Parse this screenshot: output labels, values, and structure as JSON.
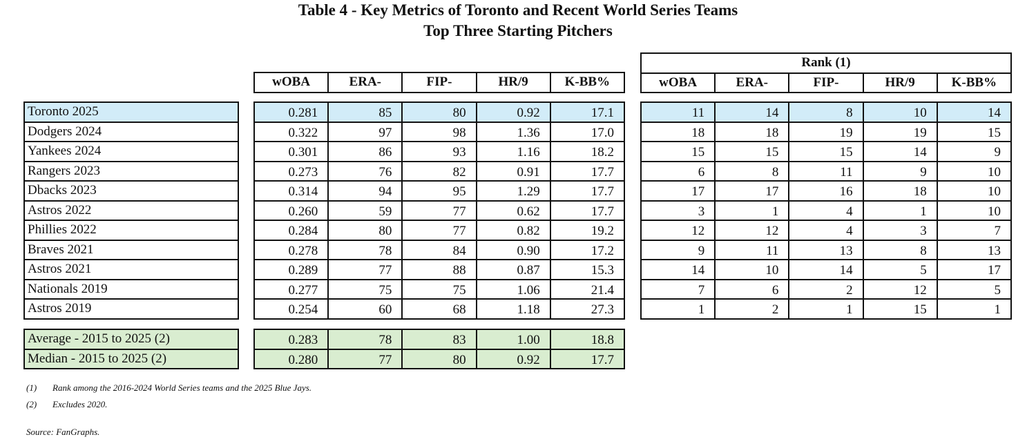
{
  "title": "Table 4 - Key Metrics of Toronto and Recent World Series Teams",
  "subtitle": "Top Three Starting Pitchers",
  "rank_header": "Rank (1)",
  "columns": [
    "wOBA",
    "ERA-",
    "FIP-",
    "HR/9",
    "K-BB%"
  ],
  "rows": [
    {
      "team": "Toronto 2025",
      "values": [
        "0.281",
        "85",
        "80",
        "0.92",
        "17.1"
      ],
      "ranks": [
        "11",
        "14",
        "8",
        "10",
        "14"
      ]
    },
    {
      "team": "Dodgers 2024",
      "values": [
        "0.322",
        "97",
        "98",
        "1.36",
        "17.0"
      ],
      "ranks": [
        "18",
        "18",
        "19",
        "19",
        "15"
      ]
    },
    {
      "team": "Yankees 2024",
      "values": [
        "0.301",
        "86",
        "93",
        "1.16",
        "18.2"
      ],
      "ranks": [
        "15",
        "15",
        "15",
        "14",
        "9"
      ]
    },
    {
      "team": "Rangers 2023",
      "values": [
        "0.273",
        "76",
        "82",
        "0.91",
        "17.7"
      ],
      "ranks": [
        "6",
        "8",
        "11",
        "9",
        "10"
      ]
    },
    {
      "team": "Dbacks 2023",
      "values": [
        "0.314",
        "94",
        "95",
        "1.29",
        "17.7"
      ],
      "ranks": [
        "17",
        "17",
        "16",
        "18",
        "10"
      ]
    },
    {
      "team": "Astros 2022",
      "values": [
        "0.260",
        "59",
        "77",
        "0.62",
        "17.7"
      ],
      "ranks": [
        "3",
        "1",
        "4",
        "1",
        "10"
      ]
    },
    {
      "team": "Phillies 2022",
      "values": [
        "0.284",
        "80",
        "77",
        "0.82",
        "19.2"
      ],
      "ranks": [
        "12",
        "12",
        "4",
        "3",
        "7"
      ]
    },
    {
      "team": "Braves 2021",
      "values": [
        "0.278",
        "78",
        "84",
        "0.90",
        "17.2"
      ],
      "ranks": [
        "9",
        "11",
        "13",
        "8",
        "13"
      ]
    },
    {
      "team": "Astros 2021",
      "values": [
        "0.289",
        "77",
        "88",
        "0.87",
        "15.3"
      ],
      "ranks": [
        "14",
        "10",
        "14",
        "5",
        "17"
      ]
    },
    {
      "team": "Nationals 2019",
      "values": [
        "0.277",
        "75",
        "75",
        "1.06",
        "21.4"
      ],
      "ranks": [
        "7",
        "6",
        "2",
        "12",
        "5"
      ]
    },
    {
      "team": "Astros 2019",
      "values": [
        "0.254",
        "60",
        "68",
        "1.18",
        "27.3"
      ],
      "ranks": [
        "1",
        "2",
        "1",
        "15",
        "1"
      ]
    }
  ],
  "summary": [
    {
      "label": "Average - 2015 to 2025 (2)",
      "values": [
        "0.283",
        "78",
        "83",
        "1.00",
        "18.8"
      ]
    },
    {
      "label": "Median - 2015 to 2025 (2)",
      "values": [
        "0.280",
        "77",
        "80",
        "0.92",
        "17.7"
      ]
    }
  ],
  "notes": [
    {
      "marker": "(1)",
      "text": "Rank among the 2016-2024 World Series teams and the 2025 Blue Jays."
    },
    {
      "marker": "(2)",
      "text": "Excludes 2020."
    }
  ],
  "source": "Source: FanGraphs.",
  "colors": {
    "highlight": "#d2ecf8",
    "summary": "#d9edd0"
  }
}
